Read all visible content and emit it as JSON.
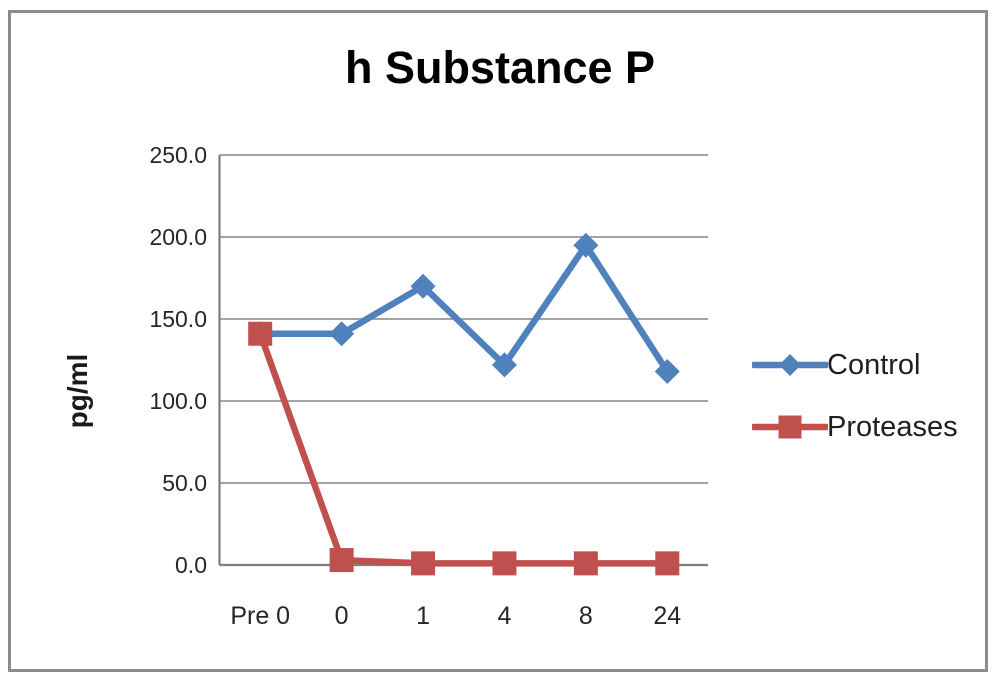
{
  "chart_data": {
    "type": "line",
    "title": "h Substance P",
    "ylabel": "pg/ml",
    "xlabel": "",
    "categories": [
      "Pre 0",
      "0",
      "1",
      "4",
      "8",
      "24"
    ],
    "series": [
      {
        "name": "Control",
        "color": "#4F81BD",
        "marker": "diamond",
        "values": [
          141,
          141,
          170,
          122,
          195,
          118
        ]
      },
      {
        "name": "Proteases",
        "color": "#C0504D",
        "marker": "square",
        "values": [
          141,
          3,
          1,
          1,
          1,
          1
        ]
      }
    ],
    "ylim": [
      0,
      250
    ],
    "y_ticks": [
      {
        "value": 250,
        "label": "250.0"
      },
      {
        "value": 200,
        "label": "200.0"
      },
      {
        "value": 150,
        "label": "150.0"
      },
      {
        "value": 100,
        "label": "100.0"
      },
      {
        "value": 50,
        "label": "50.0"
      },
      {
        "value": 0,
        "label": "0.0"
      }
    ],
    "grid": true,
    "legend_position": "right",
    "colors": {
      "grid": "#969696",
      "axis": "#7f7f7f",
      "frame_border": "#8c8c8c",
      "tick_text": "#262626",
      "title_text": "#000000"
    }
  }
}
